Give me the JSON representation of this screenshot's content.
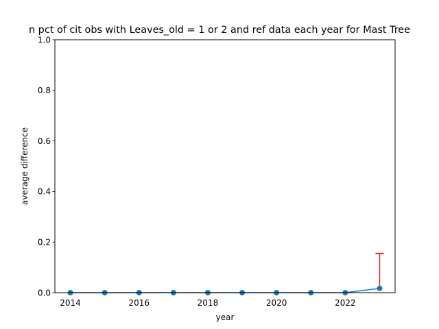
{
  "chart_data": {
    "type": "line",
    "title": "n pct of cit obs with Leaves_old = 1 or 2 and ref data each year for Mast Tree",
    "xlabel": "year",
    "ylabel": "average difference",
    "xlim": [
      2013.55,
      2023.45
    ],
    "ylim": [
      0,
      1.0
    ],
    "x_ticks": [
      2014,
      2016,
      2018,
      2020,
      2022
    ],
    "y_ticks": [
      0.0,
      0.2,
      0.4,
      0.6,
      0.8,
      1.0
    ],
    "y_tick_labels": [
      "0.0",
      "0.2",
      "0.4",
      "0.6",
      "0.8",
      "1.0"
    ],
    "grid": false,
    "series": [
      {
        "x": [
          2014,
          2015,
          2016,
          2017,
          2018,
          2019,
          2020,
          2021,
          2022,
          2023
        ],
        "values": [
          0,
          0,
          0,
          0,
          0,
          0,
          0,
          0,
          0,
          0.017
        ],
        "error_upper": [
          0,
          0,
          0,
          0,
          0,
          0,
          0,
          0,
          0,
          0.138
        ],
        "color": "#1f77b4",
        "error_color": "#d62728"
      }
    ]
  }
}
